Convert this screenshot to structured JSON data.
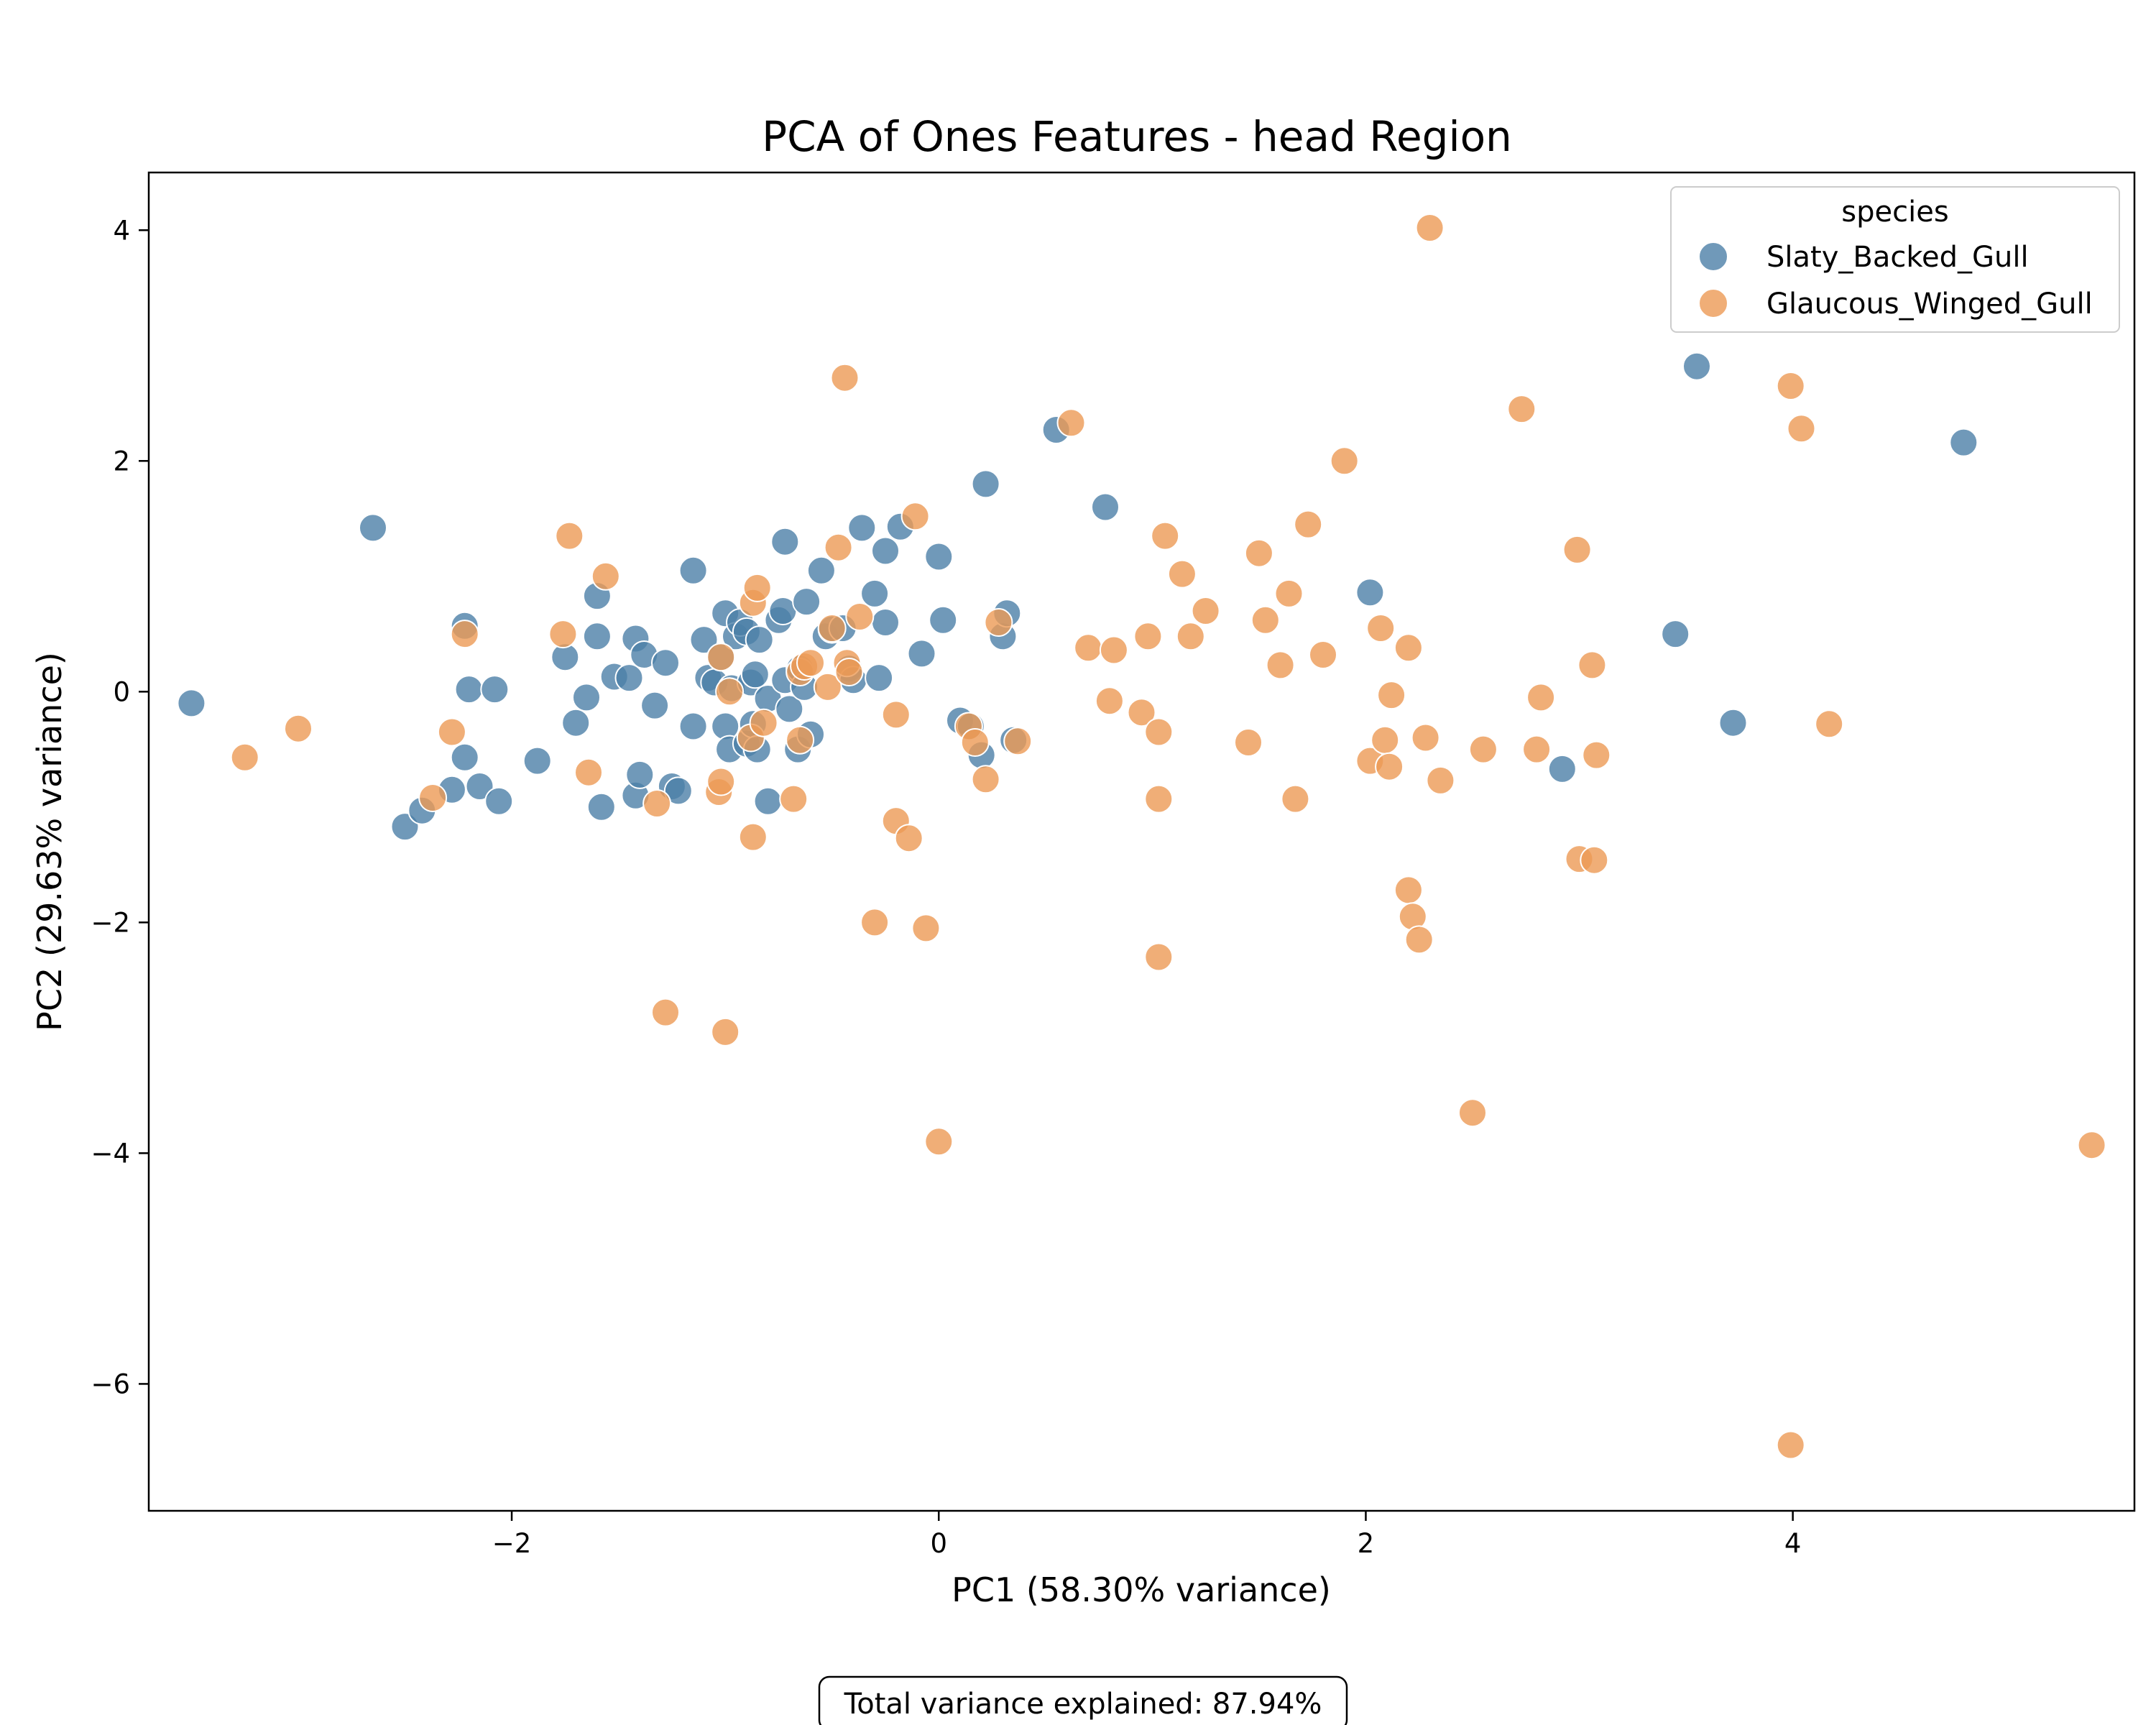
{
  "chart_data": {
    "type": "scatter",
    "title": "PCA of Ones Features - head Region",
    "xlabel": "PC1 (58.30% variance)",
    "ylabel": "PC2 (29.63% variance)",
    "xlim": [
      -3.7,
      5.6
    ],
    "ylim": [
      -7.1,
      4.5
    ],
    "xticks": [
      -2,
      0,
      2,
      4
    ],
    "yticks": [
      -6,
      -4,
      -2,
      0,
      2,
      4
    ],
    "xtick_labels": [
      "−2",
      "0",
      "2",
      "4"
    ],
    "ytick_labels": [
      "−6",
      "−4",
      "−2",
      "0",
      "2",
      "4"
    ],
    "grid": false,
    "legend": {
      "title": "species",
      "placement": "top-right"
    },
    "footer_note": "Total variance explained: 87.94%",
    "series": [
      {
        "name": "Slaty_Backed_Gull",
        "color": "#4c7fa8",
        "points": [
          [
            -3.5,
            -0.1
          ],
          [
            -2.65,
            1.42
          ],
          [
            -2.5,
            -1.17
          ],
          [
            -2.42,
            -1.03
          ],
          [
            -2.28,
            -0.85
          ],
          [
            -2.22,
            0.57
          ],
          [
            -2.22,
            -0.57
          ],
          [
            -2.2,
            0.02
          ],
          [
            -2.15,
            -0.82
          ],
          [
            -2.08,
            0.02
          ],
          [
            -2.06,
            -0.95
          ],
          [
            -1.88,
            -0.6
          ],
          [
            -1.75,
            0.3
          ],
          [
            -1.7,
            -0.27
          ],
          [
            -1.65,
            -0.05
          ],
          [
            -1.6,
            0.48
          ],
          [
            -1.6,
            0.83
          ],
          [
            -1.58,
            -1.0
          ],
          [
            -1.52,
            0.13
          ],
          [
            -1.45,
            0.12
          ],
          [
            -1.42,
            0.46
          ],
          [
            -1.42,
            -0.9
          ],
          [
            -1.4,
            -0.72
          ],
          [
            -1.38,
            0.32
          ],
          [
            -1.33,
            -0.12
          ],
          [
            -1.28,
            0.25
          ],
          [
            -1.25,
            -0.82
          ],
          [
            -1.22,
            -0.86
          ],
          [
            -1.15,
            1.05
          ],
          [
            -1.15,
            -0.3
          ],
          [
            -1.1,
            0.45
          ],
          [
            -1.08,
            0.12
          ],
          [
            -1.05,
            0.08
          ],
          [
            -1.02,
            0.3
          ],
          [
            -1.0,
            -0.3
          ],
          [
            -1.0,
            0.68
          ],
          [
            -0.98,
            -0.5
          ],
          [
            -0.97,
            0.03
          ],
          [
            -0.95,
            0.48
          ],
          [
            -0.93,
            0.6
          ],
          [
            -0.9,
            0.52
          ],
          [
            -0.9,
            -0.45
          ],
          [
            -0.88,
            0.08
          ],
          [
            -0.87,
            -0.28
          ],
          [
            -0.86,
            0.15
          ],
          [
            -0.85,
            -0.5
          ],
          [
            -0.84,
            0.45
          ],
          [
            -0.8,
            -0.95
          ],
          [
            -0.8,
            -0.06
          ],
          [
            -0.75,
            0.62
          ],
          [
            -0.73,
            0.7
          ],
          [
            -0.72,
            1.3
          ],
          [
            -0.72,
            0.1
          ],
          [
            -0.7,
            -0.15
          ],
          [
            -0.66,
            -0.5
          ],
          [
            -0.65,
            0.2
          ],
          [
            -0.63,
            0.04
          ],
          [
            -0.62,
            0.78
          ],
          [
            -0.6,
            -0.37
          ],
          [
            -0.55,
            1.05
          ],
          [
            -0.53,
            0.48
          ],
          [
            -0.5,
            0.54
          ],
          [
            -0.45,
            0.55
          ],
          [
            -0.42,
            0.2
          ],
          [
            -0.4,
            0.1
          ],
          [
            -0.36,
            1.42
          ],
          [
            -0.3,
            0.85
          ],
          [
            -0.28,
            0.12
          ],
          [
            -0.25,
            1.22
          ],
          [
            -0.25,
            0.6
          ],
          [
            -0.18,
            1.43
          ],
          [
            -0.08,
            0.33
          ],
          [
            0.0,
            1.17
          ],
          [
            0.02,
            0.62
          ],
          [
            0.1,
            -0.25
          ],
          [
            0.15,
            -0.3
          ],
          [
            0.2,
            -0.55
          ],
          [
            0.22,
            1.8
          ],
          [
            0.3,
            0.48
          ],
          [
            0.32,
            0.68
          ],
          [
            0.35,
            -0.42
          ],
          [
            0.55,
            2.27
          ],
          [
            0.78,
            1.6
          ],
          [
            2.02,
            0.86
          ],
          [
            2.92,
            -0.67
          ],
          [
            3.45,
            0.5
          ],
          [
            3.55,
            2.82
          ],
          [
            3.72,
            -0.27
          ],
          [
            4.8,
            2.16
          ]
        ]
      },
      {
        "name": "Glaucous_Winged_Gull",
        "color": "#ec9a55",
        "points": [
          [
            -3.25,
            -0.57
          ],
          [
            -3.0,
            -0.32
          ],
          [
            -2.37,
            -0.92
          ],
          [
            -2.28,
            -0.35
          ],
          [
            -2.22,
            0.5
          ],
          [
            -1.76,
            0.5
          ],
          [
            -1.73,
            1.35
          ],
          [
            -1.64,
            -0.7
          ],
          [
            -1.56,
            1.0
          ],
          [
            -1.32,
            -0.97
          ],
          [
            -1.28,
            -2.78
          ],
          [
            -1.03,
            -0.87
          ],
          [
            -1.02,
            -0.78
          ],
          [
            -1.02,
            0.3
          ],
          [
            -1.0,
            -2.95
          ],
          [
            -0.98,
            0.0
          ],
          [
            -0.88,
            -0.4
          ],
          [
            -0.87,
            -1.26
          ],
          [
            -0.87,
            0.77
          ],
          [
            -0.85,
            0.9
          ],
          [
            -0.82,
            -0.27
          ],
          [
            -0.68,
            -0.93
          ],
          [
            -0.65,
            -0.42
          ],
          [
            -0.65,
            0.17
          ],
          [
            -0.63,
            0.22
          ],
          [
            -0.6,
            0.25
          ],
          [
            -0.52,
            0.04
          ],
          [
            -0.5,
            0.55
          ],
          [
            -0.47,
            1.25
          ],
          [
            -0.44,
            2.72
          ],
          [
            -0.43,
            0.25
          ],
          [
            -0.42,
            0.17
          ],
          [
            -0.37,
            0.65
          ],
          [
            -0.3,
            -2.0
          ],
          [
            -0.2,
            -0.2
          ],
          [
            -0.2,
            -1.12
          ],
          [
            -0.14,
            -1.27
          ],
          [
            -0.11,
            1.52
          ],
          [
            -0.06,
            -2.05
          ],
          [
            0.0,
            -3.9
          ],
          [
            0.14,
            -0.3
          ],
          [
            0.17,
            -0.44
          ],
          [
            0.22,
            -0.76
          ],
          [
            0.28,
            0.6
          ],
          [
            0.37,
            -0.43
          ],
          [
            0.62,
            2.33
          ],
          [
            0.7,
            0.38
          ],
          [
            0.8,
            -0.08
          ],
          [
            0.82,
            0.36
          ],
          [
            0.95,
            -0.18
          ],
          [
            0.98,
            0.48
          ],
          [
            1.03,
            -0.35
          ],
          [
            1.03,
            -0.93
          ],
          [
            1.03,
            -2.3
          ],
          [
            1.06,
            1.35
          ],
          [
            1.14,
            1.02
          ],
          [
            1.18,
            0.48
          ],
          [
            1.25,
            0.7
          ],
          [
            1.45,
            -0.44
          ],
          [
            1.5,
            1.2
          ],
          [
            1.53,
            0.62
          ],
          [
            1.6,
            0.23
          ],
          [
            1.64,
            0.85
          ],
          [
            1.67,
            -0.93
          ],
          [
            1.73,
            1.45
          ],
          [
            1.8,
            0.32
          ],
          [
            1.9,
            2.0
          ],
          [
            2.02,
            -0.6
          ],
          [
            2.07,
            0.55
          ],
          [
            2.09,
            -0.42
          ],
          [
            2.11,
            -0.65
          ],
          [
            2.12,
            -0.03
          ],
          [
            2.2,
            0.38
          ],
          [
            2.2,
            -1.72
          ],
          [
            2.22,
            -1.95
          ],
          [
            2.25,
            -2.15
          ],
          [
            2.28,
            -0.4
          ],
          [
            2.3,
            4.02
          ],
          [
            2.35,
            -0.77
          ],
          [
            2.5,
            -3.65
          ],
          [
            2.55,
            -0.5
          ],
          [
            2.73,
            2.45
          ],
          [
            2.8,
            -0.5
          ],
          [
            2.82,
            -0.05
          ],
          [
            2.99,
            1.23
          ],
          [
            3.0,
            -1.45
          ],
          [
            3.06,
            0.23
          ],
          [
            3.07,
            -1.46
          ],
          [
            3.08,
            -0.55
          ],
          [
            3.99,
            2.65
          ],
          [
            3.99,
            -6.53
          ],
          [
            4.04,
            2.28
          ],
          [
            4.17,
            -0.28
          ],
          [
            5.4,
            -3.93
          ]
        ]
      }
    ]
  }
}
